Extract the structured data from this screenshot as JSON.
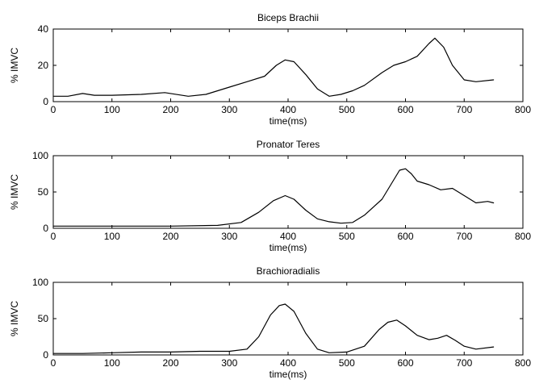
{
  "chart_data": [
    {
      "type": "line",
      "title": "Biceps Brachii",
      "xlabel": "time(ms)",
      "ylabel": "% IMVC",
      "xlim": [
        0,
        800
      ],
      "ylim": [
        0,
        40
      ],
      "xticks": [
        0,
        100,
        200,
        300,
        400,
        500,
        600,
        700,
        800
      ],
      "yticks": [
        0,
        20,
        40
      ],
      "grid": false,
      "series": [
        {
          "x": [
            0,
            25,
            50,
            70,
            100,
            150,
            190,
            230,
            260,
            300,
            330,
            360,
            380,
            395,
            410,
            430,
            450,
            470,
            490,
            510,
            530,
            560,
            580,
            600,
            620,
            640,
            650,
            665,
            680,
            700,
            720,
            750
          ],
          "y": [
            3,
            3,
            4.5,
            3.5,
            3.5,
            4,
            5,
            3,
            4,
            8,
            11,
            14,
            20,
            23,
            22,
            15,
            7,
            3,
            4,
            6,
            9,
            16,
            20,
            22,
            25,
            32,
            35,
            30,
            20,
            12,
            11,
            12
          ]
        }
      ]
    },
    {
      "type": "line",
      "title": "Pronator Teres",
      "xlabel": "time(ms)",
      "ylabel": "% IMVC",
      "xlim": [
        0,
        800
      ],
      "ylim": [
        0,
        100
      ],
      "xticks": [
        0,
        100,
        200,
        300,
        400,
        500,
        600,
        700,
        800
      ],
      "yticks": [
        0,
        50,
        100
      ],
      "grid": false,
      "series": [
        {
          "x": [
            0,
            100,
            200,
            280,
            320,
            350,
            375,
            395,
            410,
            430,
            450,
            470,
            490,
            510,
            530,
            560,
            575,
            590,
            600,
            610,
            620,
            640,
            660,
            680,
            700,
            720,
            740,
            750
          ],
          "y": [
            3,
            3,
            3,
            4,
            8,
            22,
            38,
            45,
            40,
            25,
            13,
            9,
            7,
            8,
            18,
            40,
            60,
            80,
            82,
            75,
            65,
            60,
            53,
            55,
            45,
            35,
            37,
            35
          ]
        }
      ]
    },
    {
      "type": "line",
      "title": "Brachioradialis",
      "xlabel": "time(ms)",
      "ylabel": "% IMVC",
      "xlim": [
        0,
        800
      ],
      "ylim": [
        0,
        100
      ],
      "xticks": [
        0,
        100,
        200,
        300,
        400,
        500,
        600,
        700,
        800
      ],
      "yticks": [
        0,
        50,
        100
      ],
      "grid": false,
      "series": [
        {
          "x": [
            0,
            50,
            100,
            150,
            200,
            250,
            300,
            330,
            350,
            370,
            385,
            395,
            410,
            430,
            450,
            470,
            500,
            530,
            555,
            570,
            585,
            600,
            620,
            640,
            655,
            670,
            685,
            700,
            720,
            750
          ],
          "y": [
            2,
            2,
            3,
            4,
            4,
            5,
            5,
            8,
            25,
            55,
            68,
            70,
            60,
            30,
            8,
            3,
            4,
            12,
            35,
            45,
            48,
            40,
            27,
            21,
            23,
            27,
            20,
            12,
            8,
            11
          ]
        }
      ]
    }
  ]
}
